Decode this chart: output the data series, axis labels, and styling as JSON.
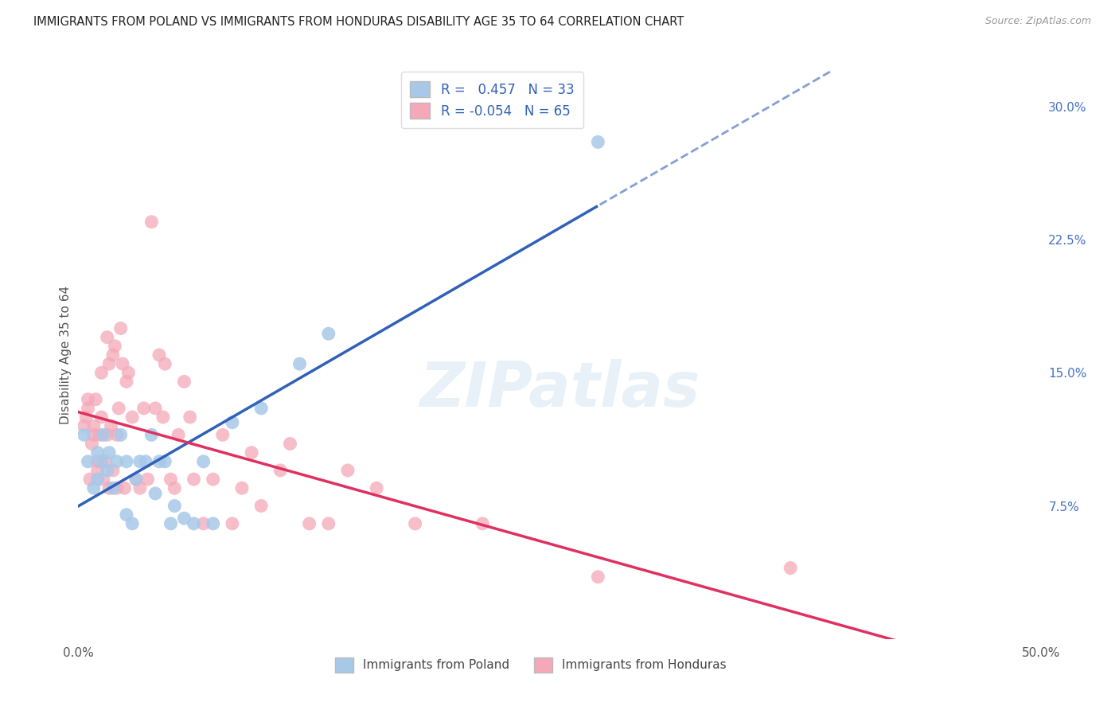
{
  "title": "IMMIGRANTS FROM POLAND VS IMMIGRANTS FROM HONDURAS DISABILITY AGE 35 TO 64 CORRELATION CHART",
  "source": "Source: ZipAtlas.com",
  "ylabel": "Disability Age 35 to 64",
  "xlim": [
    0.0,
    0.5
  ],
  "ylim": [
    0.0,
    0.32
  ],
  "poland_R": "0.457",
  "poland_N": "33",
  "honduras_R": "-0.054",
  "honduras_N": "65",
  "poland_color": "#a8c8e8",
  "honduras_color": "#f4a8b8",
  "poland_line_color": "#3060b8",
  "honduras_line_color": "#e03060",
  "legend_poland_label": "Immigrants from Poland",
  "legend_honduras_label": "Immigrants from Honduras",
  "watermark": "ZIPatlas",
  "background_color": "#ffffff",
  "grid_color": "#cccccc",
  "poland_scatter_x": [
    0.003,
    0.005,
    0.008,
    0.01,
    0.01,
    0.012,
    0.013,
    0.015,
    0.016,
    0.018,
    0.02,
    0.022,
    0.025,
    0.025,
    0.028,
    0.03,
    0.032,
    0.035,
    0.038,
    0.04,
    0.042,
    0.045,
    0.048,
    0.05,
    0.055,
    0.06,
    0.065,
    0.07,
    0.08,
    0.095,
    0.115,
    0.13,
    0.27
  ],
  "poland_scatter_y": [
    0.115,
    0.1,
    0.085,
    0.09,
    0.105,
    0.1,
    0.115,
    0.095,
    0.105,
    0.085,
    0.1,
    0.115,
    0.07,
    0.1,
    0.065,
    0.09,
    0.1,
    0.1,
    0.115,
    0.082,
    0.1,
    0.1,
    0.065,
    0.075,
    0.068,
    0.065,
    0.1,
    0.065,
    0.122,
    0.13,
    0.155,
    0.172,
    0.28
  ],
  "honduras_scatter_x": [
    0.003,
    0.004,
    0.005,
    0.005,
    0.006,
    0.007,
    0.008,
    0.008,
    0.009,
    0.01,
    0.01,
    0.011,
    0.012,
    0.012,
    0.013,
    0.014,
    0.015,
    0.015,
    0.016,
    0.016,
    0.017,
    0.018,
    0.018,
    0.019,
    0.02,
    0.02,
    0.021,
    0.022,
    0.023,
    0.024,
    0.025,
    0.026,
    0.028,
    0.03,
    0.032,
    0.034,
    0.036,
    0.038,
    0.04,
    0.042,
    0.044,
    0.045,
    0.048,
    0.05,
    0.052,
    0.055,
    0.058,
    0.06,
    0.065,
    0.07,
    0.075,
    0.08,
    0.085,
    0.09,
    0.095,
    0.105,
    0.11,
    0.12,
    0.13,
    0.14,
    0.155,
    0.175,
    0.21,
    0.27,
    0.37
  ],
  "honduras_scatter_y": [
    0.12,
    0.125,
    0.13,
    0.135,
    0.09,
    0.11,
    0.115,
    0.12,
    0.135,
    0.095,
    0.1,
    0.115,
    0.125,
    0.15,
    0.09,
    0.1,
    0.115,
    0.17,
    0.085,
    0.155,
    0.12,
    0.16,
    0.095,
    0.165,
    0.085,
    0.115,
    0.13,
    0.175,
    0.155,
    0.085,
    0.145,
    0.15,
    0.125,
    0.09,
    0.085,
    0.13,
    0.09,
    0.235,
    0.13,
    0.16,
    0.125,
    0.155,
    0.09,
    0.085,
    0.115,
    0.145,
    0.125,
    0.09,
    0.065,
    0.09,
    0.115,
    0.065,
    0.085,
    0.105,
    0.075,
    0.095,
    0.11,
    0.065,
    0.065,
    0.095,
    0.085,
    0.065,
    0.065,
    0.035,
    0.04
  ]
}
